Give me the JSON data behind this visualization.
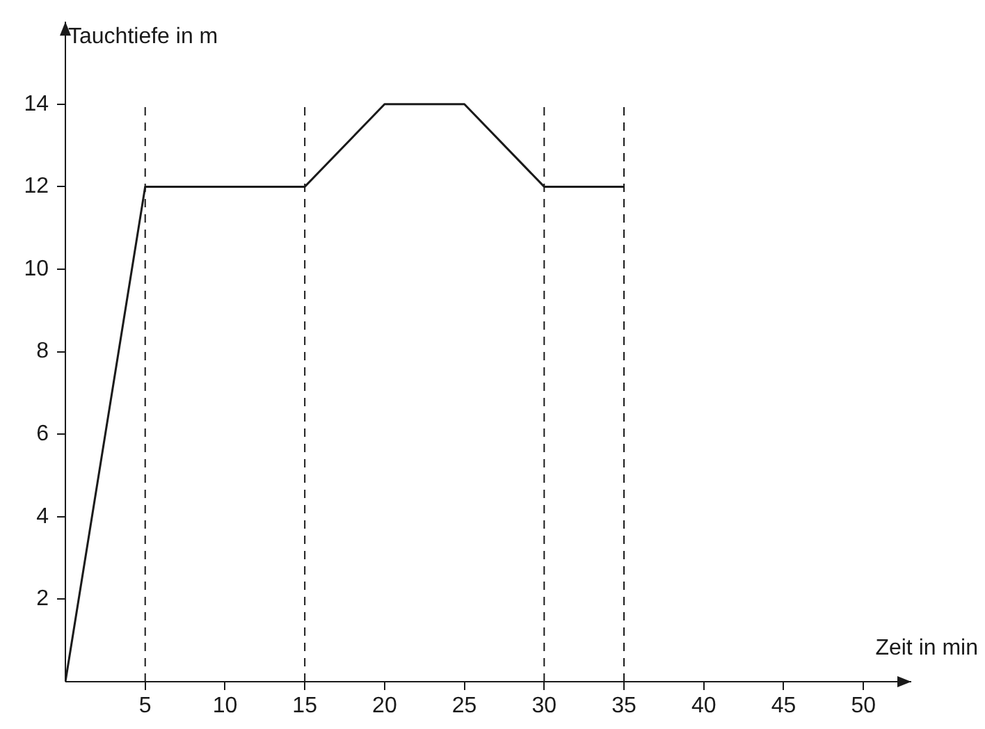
{
  "chart_data": {
    "type": "line",
    "xlabel": "Zeit in min",
    "ylabel": "Tauchtiefe in m",
    "x": [
      0,
      5,
      15,
      20,
      25,
      30,
      35
    ],
    "series": [
      {
        "color": "#1a1a1a",
        "values": [
          0,
          12,
          12,
          14,
          14,
          12,
          12
        ]
      }
    ],
    "xlim": [
      0,
      53
    ],
    "xticks": [
      5,
      10,
      15,
      20,
      25,
      30,
      35,
      40,
      45,
      50
    ],
    "ylim": [
      0,
      16
    ],
    "yticks": [
      2,
      4,
      6,
      8,
      10,
      12,
      14
    ],
    "ref_lines": [
      {
        "axis": "x",
        "value": 5,
        "line_style": "dashed"
      },
      {
        "axis": "x",
        "value": 15,
        "line_style": "dashed"
      },
      {
        "axis": "x",
        "value": 30,
        "line_style": "dashed"
      },
      {
        "axis": "x",
        "value": 35,
        "line_style": "dashed"
      }
    ],
    "grid": false,
    "legend": false,
    "marker": "none",
    "line_style": "solid"
  }
}
